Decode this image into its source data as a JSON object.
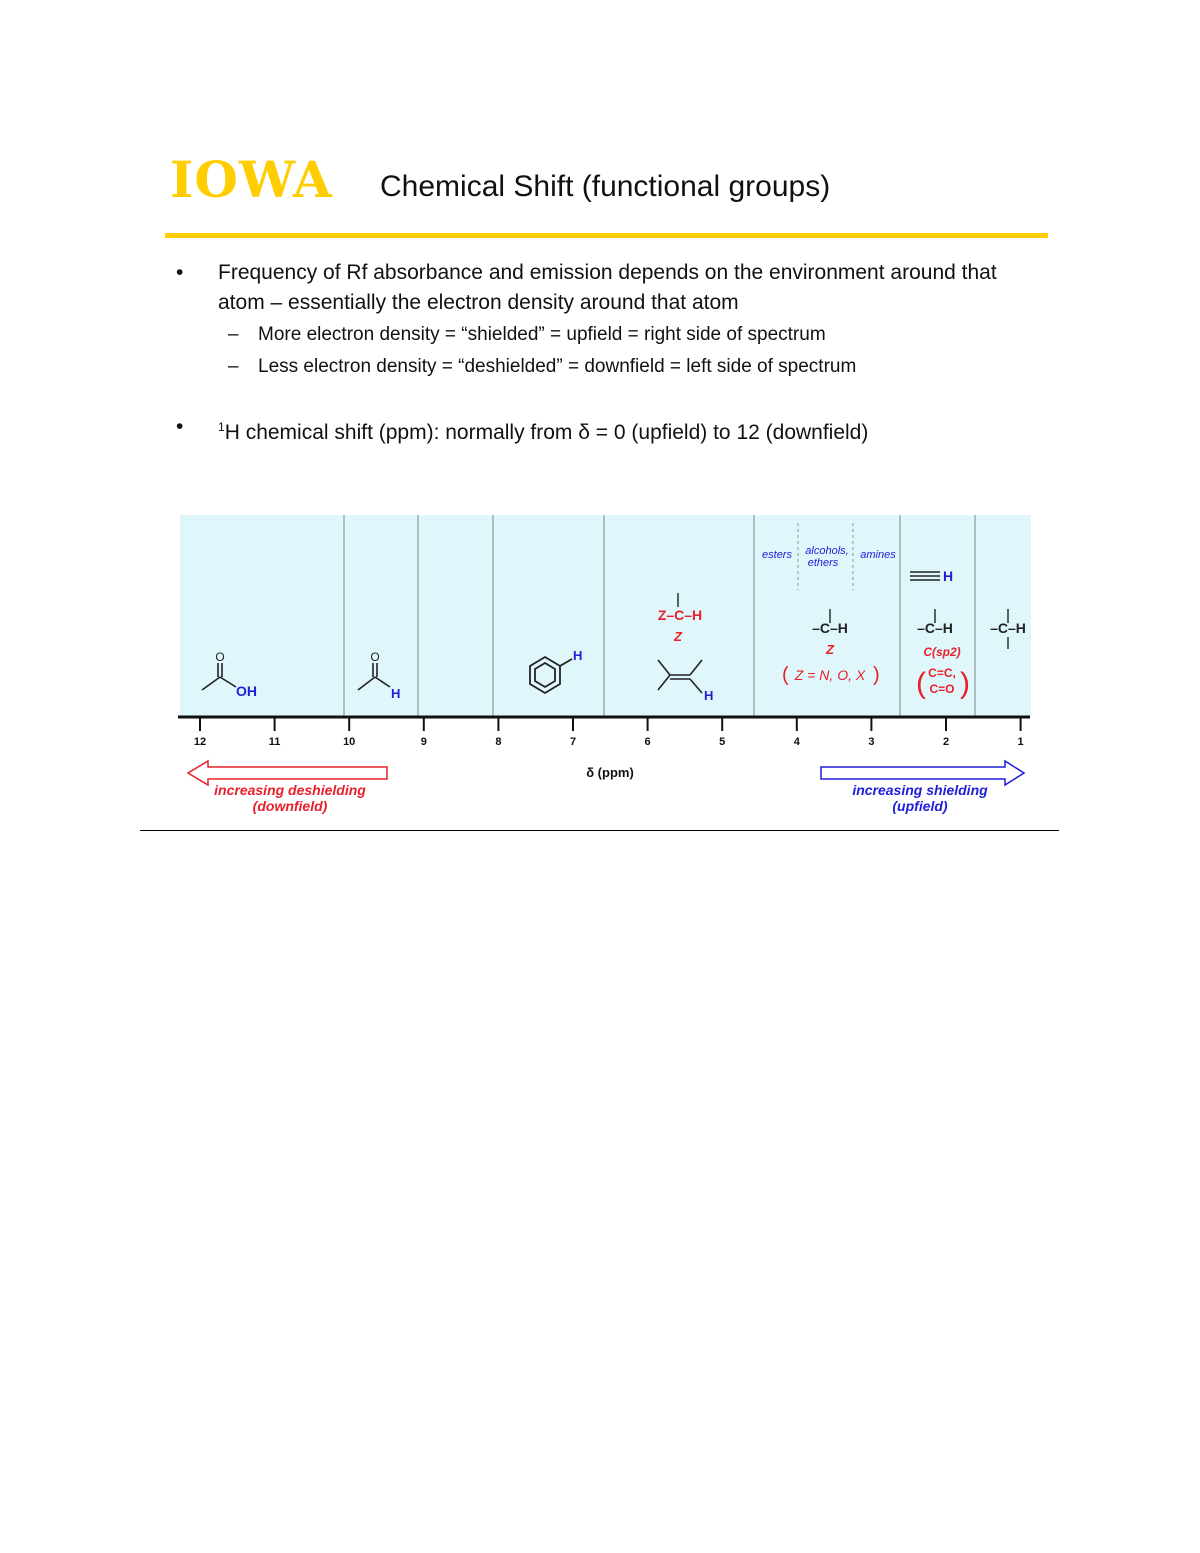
{
  "header": {
    "logo": "IOWA",
    "title": "Chemical Shift (functional groups)"
  },
  "bullets": [
    {
      "bullet": "•",
      "text": "Frequency of Rf absorbance and emission depends on the environment around that atom – essentially the electron density around that atom",
      "subs": [
        {
          "dash": "–",
          "text": "More electron density = “shielded” = upfield = right side of spectrum"
        },
        {
          "dash": "–",
          "text": "Less electron density = “deshielded” = downfield = left side of spectrum"
        }
      ]
    },
    {
      "bullet": "•",
      "sup": "1",
      "text": "H chemical shift (ppm): normally from δ = 0 (upfield) to 12 (downfield)"
    }
  ],
  "colors": {
    "gold": "#FFCD00",
    "panel": "#DFF6FA",
    "red": "#E8202A",
    "blue": "#1E1ED8"
  },
  "figure": {
    "axis": {
      "ticks": [
        "12",
        "11",
        "10",
        "9",
        "8",
        "7",
        "6",
        "5",
        "4",
        "3",
        "2",
        "1"
      ],
      "label": "δ (ppm)"
    },
    "arrows": {
      "left_line1": "increasing deshielding",
      "left_line2": "(downfield)",
      "right_line1": "increasing shielding",
      "right_line2": "(upfield)"
    },
    "groups": {
      "esters": "esters",
      "alcohols": "alcohols,",
      "ethers": "ethers",
      "amines": "amines"
    },
    "labels": {
      "oh": "OH",
      "h": "H",
      "c": "C",
      "z": "Z",
      "zch": "Z–C–H",
      "ch": "–C–H",
      "z_def": "Z = N, O, X",
      "csp2": "C(sp2)",
      "cc": "C=C,",
      "co": "C=O",
      "alkyne_h": "H"
    }
  }
}
